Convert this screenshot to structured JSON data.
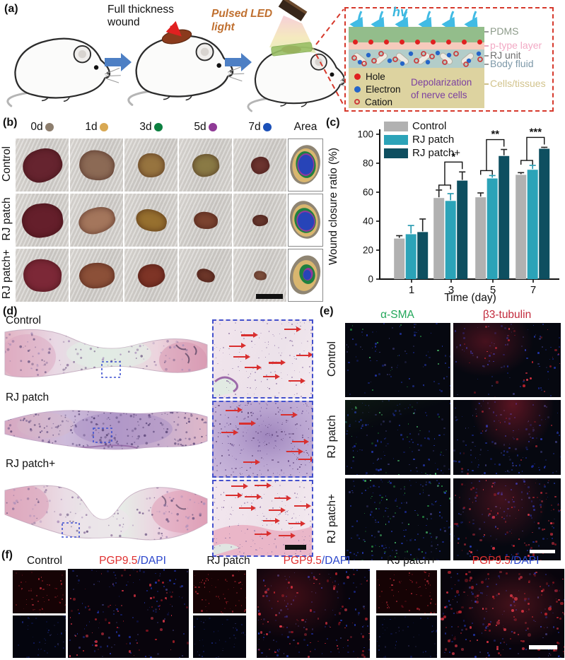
{
  "panel_a": {
    "label": "(a)",
    "wound_annotation": "Full thickness wound",
    "led_annotation": "Pulsed LED light",
    "inset": {
      "hv_label": "hv",
      "layer_labels": [
        {
          "label": "PDMS",
          "color": "#8d9b8a"
        },
        {
          "label": "p-type layer",
          "color": "#f2a9c4"
        },
        {
          "label": "RJ unit",
          "color": "#6f6f6f"
        },
        {
          "label": "Body fluid",
          "color": "#7d98a8"
        },
        {
          "label": "Cells/tissues",
          "color": "#d2c38c"
        }
      ],
      "legend": [
        {
          "label": "Hole",
          "color": "#e02020"
        },
        {
          "label": "Electron",
          "color": "#2565c8"
        },
        {
          "label": "Cation",
          "color": "#cc3b3b"
        }
      ],
      "depolarization_text": "Depolarization of nerve cells"
    }
  },
  "panel_b": {
    "label": "(b)",
    "columns": [
      {
        "label": "0d",
        "dot_color": "#8d7e6e"
      },
      {
        "label": "1d",
        "dot_color": "#d8a853"
      },
      {
        "label": "3d",
        "dot_color": "#0d8040"
      },
      {
        "label": "5d",
        "dot_color": "#8f3a96"
      },
      {
        "label": "7d",
        "dot_color": "#1b50b8"
      },
      {
        "label": "Area",
        "dot_color": null
      }
    ],
    "rows": [
      "Control",
      "RJ patch",
      "RJ patch+"
    ]
  },
  "panel_c": {
    "label": "(c)"
  },
  "chart_data": {
    "type": "bar",
    "title": "",
    "xlabel": "Time (day)",
    "ylabel": "Wound closure ratio (%)",
    "categories": [
      "1",
      "3",
      "5",
      "7"
    ],
    "ylim": [
      0,
      100
    ],
    "yticks": [
      0,
      20,
      40,
      60,
      80,
      100
    ],
    "grid": false,
    "legend_position": "top-left",
    "series": [
      {
        "name": "Control",
        "color": "#b1b1b1",
        "values": [
          28,
          56,
          56.5,
          72
        ],
        "errors": [
          2,
          5.5,
          3,
          1.5
        ]
      },
      {
        "name": "RJ patch",
        "color": "#2ba3b8",
        "values": [
          31,
          54,
          69.5,
          75.5
        ],
        "errors": [
          6,
          5,
          2,
          3
        ]
      },
      {
        "name": "RJ patch+",
        "color": "#0e4f60",
        "values": [
          32.5,
          68,
          85,
          90
        ],
        "errors": [
          9,
          6,
          4.5,
          1
        ]
      }
    ],
    "significance": [
      {
        "category": "3",
        "stars": "*"
      },
      {
        "category": "5",
        "stars": "**"
      },
      {
        "category": "7",
        "stars": "***"
      }
    ]
  },
  "panel_d": {
    "label": "(d)",
    "rows": [
      "Control",
      "RJ patch",
      "RJ patch+"
    ]
  },
  "panel_e": {
    "label": "(e)",
    "columns": [
      {
        "label": "α-SMA",
        "color": "#22a75a"
      },
      {
        "label": "β3-tubulin",
        "color": "#c22a3c"
      }
    ],
    "rows": [
      "Control",
      "RJ patch",
      "RJ patch+"
    ]
  },
  "panel_f": {
    "label": "(f)",
    "groups": [
      "Control",
      "RJ patch",
      "RJ patch+"
    ],
    "stain_label": {
      "pgp": "PGP9.5",
      "slash": "/",
      "dapi": "DAPI",
      "pgp_color": "#e03030",
      "dapi_color": "#2b46cc"
    }
  }
}
